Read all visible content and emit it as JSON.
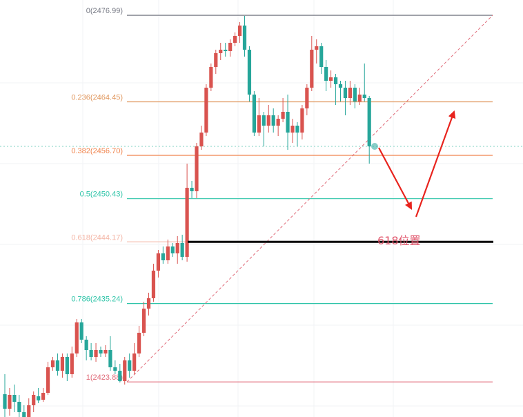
{
  "chart_data": {
    "type": "candlestick",
    "title": "",
    "y_range": [
      2418.8,
      2479.2
    ],
    "grid": true,
    "colors": {
      "up": "#d9534f",
      "down": "#26a69a",
      "arrow": "#e8231d",
      "annotation": "#e0556b"
    },
    "fib_levels": [
      {
        "ratio": "0",
        "price": 2476.99,
        "label": "0(2476.99)",
        "color": "#787b86"
      },
      {
        "ratio": "0.236",
        "price": 2464.45,
        "label": "0.236(2464.45)",
        "color": "#e0965c"
      },
      {
        "ratio": "0.382",
        "price": 2456.7,
        "label": "0.382(2456.70)",
        "color": "#f0844d"
      },
      {
        "ratio": "0.5",
        "price": 2450.43,
        "label": "0.5(2450.43)",
        "color": "#2ec4a8"
      },
      {
        "ratio": "0.618",
        "price": 2444.17,
        "label": "0.618(2444.17)",
        "color": "#f4b5a5"
      },
      {
        "ratio": "0.786",
        "price": 2435.24,
        "label": "0.786(2435.24)",
        "color": "#2ec4a8"
      },
      {
        "ratio": "1",
        "price": 2423.88,
        "label": "1(2423.88)",
        "color": "#e06c7a"
      }
    ],
    "current_price": 2458.0,
    "annotation": "618位置",
    "candles": [
      [
        2422.1,
        2420.0,
        2425.0,
        2418.6
      ],
      [
        2420.0,
        2422.0,
        2423.0,
        2419.0
      ],
      [
        2422.0,
        2421.0,
        2423.5,
        2419.5
      ],
      [
        2421.0,
        2419.5,
        2422.0,
        2418.0
      ],
      [
        2419.5,
        2418.8,
        2420.5,
        2418.5
      ],
      [
        2418.8,
        2420.5,
        2421.5,
        2418.0
      ],
      [
        2420.5,
        2422.0,
        2422.5,
        2419.5
      ],
      [
        2421.8,
        2421.2,
        2423.0,
        2420.8
      ],
      [
        2421.3,
        2422.3,
        2423.0,
        2421.0
      ],
      [
        2422.3,
        2426.0,
        2426.8,
        2422.0
      ],
      [
        2426.0,
        2427.0,
        2427.5,
        2425.5
      ],
      [
        2427.0,
        2425.5,
        2428.0,
        2424.8
      ],
      [
        2425.5,
        2427.5,
        2428.0,
        2424.5
      ],
      [
        2427.5,
        2425.0,
        2428.0,
        2424.0
      ],
      [
        2425.0,
        2428.0,
        2429.0,
        2424.5
      ],
      [
        2428.0,
        2432.5,
        2433.0,
        2427.5
      ],
      [
        2432.5,
        2430.0,
        2433.0,
        2429.5
      ],
      [
        2430.0,
        2428.5,
        2430.5,
        2427.0
      ],
      [
        2428.5,
        2427.5,
        2429.5,
        2427.0
      ],
      [
        2427.5,
        2428.5,
        2429.5,
        2426.8
      ],
      [
        2428.5,
        2428.0,
        2429.0,
        2427.5
      ],
      [
        2428.0,
        2428.5,
        2429.2,
        2427.5
      ],
      [
        2428.5,
        2426.0,
        2430.5,
        2425.5
      ],
      [
        2426.0,
        2425.5,
        2427.0,
        2425.0
      ],
      [
        2425.5,
        2424.0,
        2426.5,
        2423.8
      ],
      [
        2424.0,
        2427.0,
        2427.5,
        2423.5
      ],
      [
        2427.0,
        2425.5,
        2428.0,
        2424.5
      ],
      [
        2425.5,
        2428.0,
        2429.5,
        2425.0
      ],
      [
        2428.0,
        2431.0,
        2432.0,
        2427.5
      ],
      [
        2431.0,
        2434.5,
        2435.5,
        2430.5
      ],
      [
        2434.5,
        2436.0,
        2436.8,
        2433.5
      ],
      [
        2436.0,
        2440.0,
        2441.0,
        2435.5
      ],
      [
        2440.0,
        2442.5,
        2443.0,
        2439.0
      ],
      [
        2442.5,
        2441.5,
        2443.5,
        2441.0
      ],
      [
        2441.5,
        2443.5,
        2444.5,
        2441.0
      ],
      [
        2443.5,
        2442.5,
        2444.0,
        2442.0
      ],
      [
        2442.5,
        2444.0,
        2445.0,
        2441.0
      ],
      [
        2444.0,
        2442.0,
        2445.2,
        2441.5
      ],
      [
        2442.0,
        2452.0,
        2455.5,
        2441.3
      ],
      [
        2452.0,
        2451.5,
        2453.0,
        2450.5
      ],
      [
        2451.5,
        2458.0,
        2458.5,
        2450.5
      ],
      [
        2458.0,
        2460.0,
        2461.0,
        2457.5
      ],
      [
        2460.0,
        2466.5,
        2467.0,
        2459.5
      ],
      [
        2466.5,
        2469.5,
        2470.0,
        2466.0
      ],
      [
        2469.5,
        2471.5,
        2472.0,
        2468.5
      ],
      [
        2471.5,
        2472.0,
        2473.0,
        2470.5
      ],
      [
        2472.0,
        2471.8,
        2473.0,
        2471.0
      ],
      [
        2471.8,
        2473.0,
        2473.5,
        2471.0
      ],
      [
        2473.0,
        2474.0,
        2474.5,
        2472.5
      ],
      [
        2474.0,
        2475.5,
        2476.0,
        2473.0
      ],
      [
        2475.5,
        2472.0,
        2476.9,
        2471.0
      ],
      [
        2472.0,
        2465.5,
        2472.5,
        2464.5
      ],
      [
        2465.5,
        2460.0,
        2466.0,
        2459.5
      ],
      [
        2460.0,
        2462.5,
        2465.0,
        2459.5
      ],
      [
        2462.5,
        2461.0,
        2463.0,
        2458.0
      ],
      [
        2461.0,
        2462.5,
        2464.0,
        2460.0
      ],
      [
        2462.5,
        2461.0,
        2463.5,
        2460.0
      ],
      [
        2461.0,
        2462.0,
        2462.5,
        2459.5
      ],
      [
        2462.0,
        2463.0,
        2465.0,
        2461.5
      ],
      [
        2463.0,
        2460.0,
        2465.5,
        2457.5
      ],
      [
        2460.0,
        2461.0,
        2462.0,
        2458.5
      ],
      [
        2461.0,
        2460.0,
        2461.5,
        2458.0
      ],
      [
        2460.0,
        2463.5,
        2464.0,
        2459.0
      ],
      [
        2463.5,
        2466.5,
        2467.0,
        2462.5
      ],
      [
        2466.5,
        2472.0,
        2474.0,
        2466.0
      ],
      [
        2472.0,
        2472.5,
        2473.5,
        2470.0
      ],
      [
        2472.5,
        2469.5,
        2473.0,
        2468.5
      ],
      [
        2469.5,
        2467.5,
        2470.5,
        2466.0
      ],
      [
        2467.5,
        2468.0,
        2469.0,
        2466.5
      ],
      [
        2468.0,
        2467.0,
        2468.5,
        2464.0
      ],
      [
        2467.0,
        2466.5,
        2467.5,
        2464.5
      ],
      [
        2466.5,
        2465.0,
        2467.5,
        2462.5
      ],
      [
        2465.0,
        2466.5,
        2467.5,
        2464.0
      ],
      [
        2466.5,
        2464.5,
        2467.0,
        2463.5
      ],
      [
        2464.5,
        2465.5,
        2466.5,
        2464.0
      ],
      [
        2465.5,
        2465.0,
        2470.0,
        2464.5
      ],
      [
        2465.0,
        2458.0,
        2465.3,
        2455.5
      ]
    ]
  }
}
